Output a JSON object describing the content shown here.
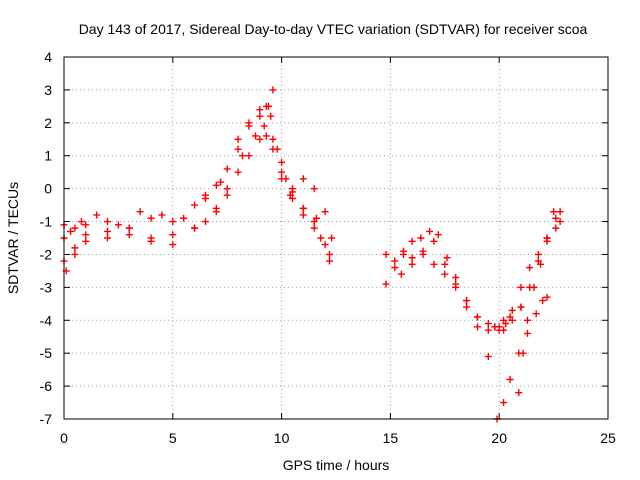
{
  "chart_data": {
    "type": "scatter",
    "title": "Day 143 of 2017, Sidereal Day-to-day VTEC variation (SDTVAR) for receiver scoa",
    "xlabel": "GPS time / hours",
    "ylabel": "SDTVAR / TECUs",
    "xlim": [
      0,
      25
    ],
    "ylim": [
      -7,
      4
    ],
    "xticks": [
      0,
      5,
      10,
      15,
      20,
      25
    ],
    "yticks": [
      -7,
      -6,
      -5,
      -4,
      -3,
      -2,
      -1,
      0,
      1,
      2,
      3,
      4
    ],
    "grid": true,
    "marker": "+",
    "color": "#ff0000",
    "series": [
      {
        "x": [
          0.0,
          0.5,
          1.0,
          2.0,
          3.0,
          4.0,
          5.0,
          6.0,
          6.5,
          7.0,
          7.5,
          8.0,
          8.5,
          9.0,
          9.3,
          9.5,
          9.8,
          10.2,
          10.5,
          11.0,
          11.5,
          11.8,
          12.2
        ],
        "y": [
          -1.5,
          -1.2,
          -1.1,
          -1.0,
          -1.2,
          -0.9,
          -1.0,
          -0.5,
          -0.2,
          0.1,
          0.6,
          1.2,
          1.9,
          2.4,
          2.5,
          2.2,
          1.2,
          0.3,
          0.0,
          -0.6,
          -1.0,
          -1.5,
          -2.2
        ]
      },
      {
        "x": [
          0.0,
          0.5,
          1.0,
          2.0,
          3.0,
          4.0,
          5.0,
          6.0,
          6.5,
          7.0,
          7.5,
          8.0,
          8.5,
          9.0,
          9.3,
          9.6,
          10.0,
          10.5,
          11.0,
          11.5,
          12.0
        ],
        "y": [
          -2.2,
          -1.8,
          -1.4,
          -1.3,
          -1.2,
          -1.5,
          -1.7,
          -1.2,
          -1.0,
          -0.6,
          -0.2,
          0.5,
          1.0,
          1.5,
          1.6,
          1.2,
          0.3,
          -0.3,
          -0.8,
          -1.2,
          -1.7
        ]
      },
      {
        "x": [
          0.0,
          0.3,
          0.8,
          1.5,
          2.5,
          3.5,
          4.5,
          5.5,
          6.5,
          7.2,
          8.0,
          8.5,
          9.0,
          9.4,
          9.6,
          10.0,
          10.5,
          11.0,
          11.5,
          12.0,
          12.3
        ],
        "y": [
          -1.1,
          -1.3,
          -1.0,
          -0.8,
          -1.1,
          -0.7,
          -0.8,
          -0.9,
          -0.3,
          0.2,
          1.5,
          2.0,
          2.2,
          2.5,
          3.0,
          0.8,
          -0.1,
          0.3,
          0.0,
          -0.7,
          -1.5
        ]
      },
      {
        "x": [
          0.1,
          0.5,
          1.0,
          2.0,
          3.0,
          4.0,
          5.0,
          6.0,
          7.0,
          7.5,
          8.2,
          8.8,
          9.2,
          9.6,
          10.0,
          10.4,
          11.0,
          11.6,
          12.2
        ],
        "y": [
          -2.5,
          -2.0,
          -1.6,
          -1.5,
          -1.4,
          -1.6,
          -1.4,
          -1.2,
          -0.7,
          0.0,
          1.0,
          1.6,
          1.9,
          1.5,
          0.5,
          -0.2,
          -0.6,
          -0.9,
          -2.0
        ]
      },
      {
        "x": [
          14.8,
          15.2,
          15.6,
          16.0,
          16.4,
          16.8,
          17.2,
          17.6,
          18.0,
          18.5,
          19.0,
          19.5,
          19.8,
          20.2
        ],
        "y": [
          -2.0,
          -2.2,
          -1.9,
          -1.6,
          -1.5,
          -1.3,
          -1.4,
          -2.1,
          -2.7,
          -3.4,
          -3.9,
          -4.1,
          -4.2,
          -4.0
        ]
      },
      {
        "x": [
          14.8,
          15.2,
          15.6,
          16.0,
          16.5,
          17.0,
          17.5,
          18.0,
          18.5,
          19.0,
          19.5,
          20.0,
          20.5,
          21.0
        ],
        "y": [
          -2.9,
          -2.4,
          -2.0,
          -2.1,
          -1.9,
          -1.6,
          -2.3,
          -2.9,
          -3.4,
          -3.9,
          -4.3,
          -4.2,
          -3.9,
          -3.6
        ]
      },
      {
        "x": [
          15.5,
          16.0,
          16.5,
          17.0,
          17.5,
          18.0,
          18.5,
          19.0,
          19.5
        ],
        "y": [
          -2.6,
          -2.3,
          -2.0,
          -2.3,
          -2.6,
          -3.0,
          -3.6,
          -4.2,
          -5.1
        ]
      },
      {
        "x": [
          20.0,
          20.3,
          20.6,
          21.0,
          21.4,
          21.8,
          22.2,
          22.6,
          22.8
        ],
        "y": [
          -4.3,
          -4.1,
          -3.7,
          -3.0,
          -2.4,
          -2.0,
          -1.5,
          -0.9,
          -0.7
        ]
      },
      {
        "x": [
          19.8,
          20.2,
          20.6,
          21.0,
          21.4,
          21.8,
          22.2,
          22.6,
          22.8
        ],
        "y": [
          -4.2,
          -4.3,
          -4.0,
          -3.6,
          -3.0,
          -2.2,
          -1.6,
          -1.2,
          -1.0
        ]
      },
      {
        "x": [
          19.9,
          20.2,
          20.5,
          20.9,
          21.3,
          21.7,
          22.0,
          22.2
        ],
        "y": [
          -7.0,
          -6.5,
          -5.8,
          -5.0,
          -4.4,
          -3.8,
          -3.4,
          -3.3
        ]
      },
      {
        "x": [
          20.9,
          21.1,
          21.3,
          21.6,
          21.9,
          22.2,
          22.5
        ],
        "y": [
          -6.2,
          -5.0,
          -4.0,
          -3.0,
          -2.3,
          -1.5,
          -0.7
        ]
      }
    ]
  }
}
